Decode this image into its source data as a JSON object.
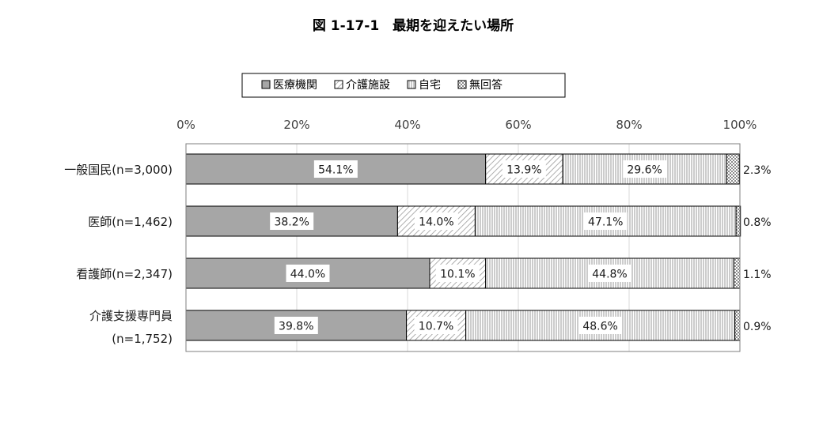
{
  "chart_data": {
    "type": "bar",
    "orientation": "horizontal",
    "stacked": "percent",
    "title": "図 1-17-1　最期を迎えたい場所",
    "categories": [
      [
        "一般国民(n=3,000)"
      ],
      [
        "医師(n=1,462)"
      ],
      [
        "看護師(n=2,347)"
      ],
      [
        "介護支援専門員",
        "(n=1,752)"
      ]
    ],
    "series": [
      {
        "name": "医療機関",
        "color": "#a6a6a6",
        "pattern": "solid",
        "values": [
          54.1,
          38.2,
          44.0,
          39.8
        ],
        "labels": [
          "54.1%",
          "38.2%",
          "44.0%",
          "39.8%"
        ]
      },
      {
        "name": "介護施設",
        "color": "#ffffff",
        "pattern": "diagonal-hatch",
        "values": [
          13.9,
          14.0,
          10.1,
          10.7
        ],
        "labels": [
          "13.9%",
          "14.0%",
          "10.1%",
          "10.7%"
        ]
      },
      {
        "name": "自宅",
        "color": "#ffffff",
        "pattern": "vertical-lines",
        "values": [
          29.6,
          47.1,
          44.8,
          48.6
        ],
        "labels": [
          "29.6%",
          "47.1%",
          "44.8%",
          "48.6%"
        ]
      },
      {
        "name": "無回答",
        "color": "#ffffff",
        "pattern": "checker",
        "values": [
          2.3,
          0.8,
          1.1,
          0.9
        ],
        "labels": [
          "2.3%",
          "0.8%",
          "1.1%",
          "0.9%"
        ]
      }
    ],
    "xlim": [
      0,
      100
    ],
    "xticks": [
      "0%",
      "20%",
      "40%",
      "60%",
      "80%",
      "100%"
    ],
    "legend_position": "top-center",
    "grid": "vertical"
  }
}
